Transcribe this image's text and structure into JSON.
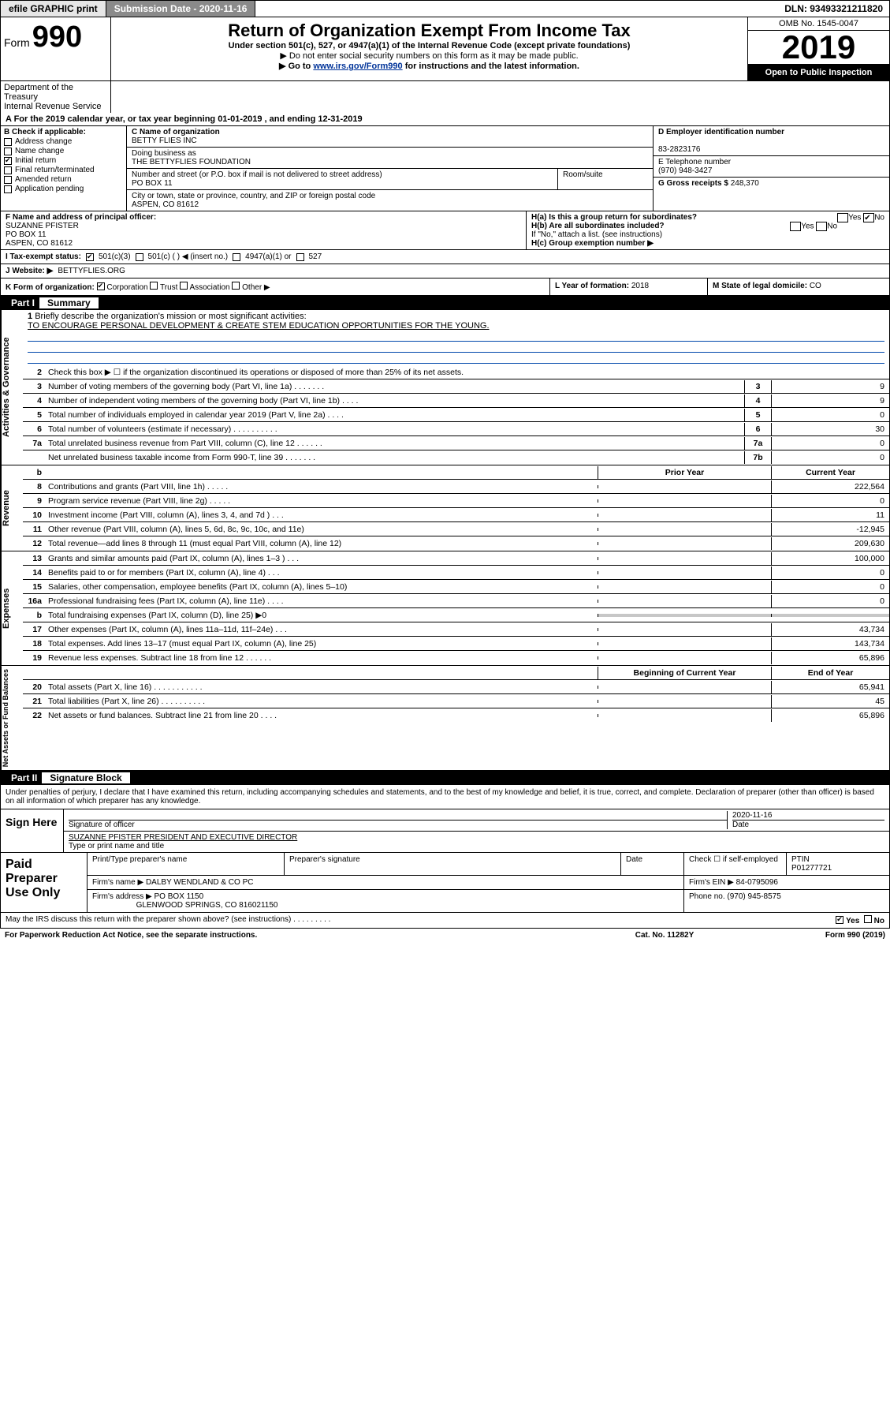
{
  "topbar": {
    "btn1": "efile GRAPHIC print",
    "btn2": "Submission Date - 2020-11-16",
    "dln": "DLN: 93493321211820"
  },
  "header": {
    "form_prefix": "Form",
    "form_no": "990",
    "title": "Return of Organization Exempt From Income Tax",
    "sub": "Under section 501(c), 527, or 4947(a)(1) of the Internal Revenue Code (except private foundations)",
    "sub2": "▶ Do not enter social security numbers on this form as it may be made public.",
    "sub3_pre": "▶ Go to ",
    "sub3_link": "www.irs.gov/Form990",
    "sub3_post": " for instructions and the latest information.",
    "omb": "OMB No. 1545-0047",
    "year": "2019",
    "open_public": "Open to Public Inspection",
    "dept": "Department of the Treasury",
    "irs": "Internal Revenue Service"
  },
  "line_a": "A For the 2019 calendar year, or tax year beginning 01-01-2019    , and ending 12-31-2019",
  "section_b": {
    "title": "B Check if applicable:",
    "opts": [
      {
        "label": "Address change",
        "checked": false
      },
      {
        "label": "Name change",
        "checked": false
      },
      {
        "label": "Initial return",
        "checked": true
      },
      {
        "label": "Final return/terminated",
        "checked": false
      },
      {
        "label": "Amended return",
        "checked": false
      },
      {
        "label": "Application pending",
        "checked": false
      }
    ]
  },
  "section_c": {
    "name_label": "C Name of organization",
    "name": "BETTY FLIES INC",
    "dba_label": "Doing business as",
    "dba": "THE BETTYFLIES FOUNDATION",
    "addr_label": "Number and street (or P.O. box if mail is not delivered to street address)",
    "room_label": "Room/suite",
    "addr": "PO BOX 11",
    "city_label": "City or town, state or province, country, and ZIP or foreign postal code",
    "city": "ASPEN, CO  81612"
  },
  "section_d": {
    "label": "D Employer identification number",
    "value": "83-2823176"
  },
  "section_e": {
    "label": "E Telephone number",
    "value": "(970) 948-3427"
  },
  "section_g": {
    "label": "G Gross receipts $",
    "value": "248,370"
  },
  "section_f": {
    "label": "F  Name and address of principal officer:",
    "name": "SUZANNE PFISTER",
    "addr1": "PO BOX 11",
    "addr2": "ASPEN, CO  81612"
  },
  "section_h": {
    "ha": "H(a)  Is this a group return for subordinates?",
    "hb": "H(b)  Are all subordinates included?",
    "hb_note": "If \"No,\" attach a list. (see instructions)",
    "hc": "H(c)  Group exemption number ▶",
    "yes": "Yes",
    "no": "No"
  },
  "row_i": {
    "label": "I  Tax-exempt status:",
    "c501c3": "501(c)(3)",
    "c501c": "501(c) (  ) ◀ (insert no.)",
    "c4947": "4947(a)(1) or",
    "c527": "527"
  },
  "row_j": {
    "label": "J  Website: ▶",
    "value": "BETTYFLIES.ORG"
  },
  "row_k": {
    "label": "K Form of organization:",
    "corp": "Corporation",
    "trust": "Trust",
    "assoc": "Association",
    "other": "Other ▶",
    "l_label": "L Year of formation:",
    "l_val": "2018",
    "m_label": "M State of legal domicile:",
    "m_val": "CO"
  },
  "part1": {
    "box": "Part I",
    "title": "Summary"
  },
  "side_labels": {
    "gov": "Activities & Governance",
    "rev": "Revenue",
    "exp": "Expenses",
    "net": "Net Assets or Fund Balances"
  },
  "q1": {
    "num": "1",
    "desc": "Briefly describe the organization's mission or most significant activities:",
    "mission": "TO ENCOURAGE PERSONAL DEVELOPMENT & CREATE STEM EDUCATION OPPORTUNITIES FOR THE YOUNG."
  },
  "q2": {
    "num": "2",
    "desc": "Check this box ▶ ☐  if the organization discontinued its operations or disposed of more than 25% of its net assets."
  },
  "numeric_rows_a": [
    {
      "num": "3",
      "desc": "Number of voting members of the governing body (Part VI, line 1a)   .   .   .   .   .   .   .",
      "n": "3",
      "v": "9"
    },
    {
      "num": "4",
      "desc": "Number of independent voting members of the governing body (Part VI, line 1b)  .   .   .   .",
      "n": "4",
      "v": "9"
    },
    {
      "num": "5",
      "desc": "Total number of individuals employed in calendar year 2019 (Part V, line 2a)   .   .   .   .",
      "n": "5",
      "v": "0"
    },
    {
      "num": "6",
      "desc": "Total number of volunteers (estimate if necessary)   .   .   .   .   .   .   .   .   .   .",
      "n": "6",
      "v": "30"
    },
    {
      "num": "7a",
      "desc": "Total unrelated business revenue from Part VIII, column (C), line 12   .   .   .   .   .   .",
      "n": "7a",
      "v": "0"
    },
    {
      "num": "",
      "desc": "Net unrelated business taxable income from Form 990-T, line 39   .   .   .   .   .   .   .",
      "n": "7b",
      "v": "0"
    }
  ],
  "hdr_b": {
    "num": "b",
    "prior": "Prior Year",
    "curr": "Current Year"
  },
  "rev_rows": [
    {
      "num": "8",
      "desc": "Contributions and grants (Part VIII, line 1h)   .   .   .   .   .",
      "p": "",
      "c": "222,564"
    },
    {
      "num": "9",
      "desc": "Program service revenue (Part VIII, line 2g)   .   .   .   .   .",
      "p": "",
      "c": "0"
    },
    {
      "num": "10",
      "desc": "Investment income (Part VIII, column (A), lines 3, 4, and 7d )   .   .   .",
      "p": "",
      "c": "11"
    },
    {
      "num": "11",
      "desc": "Other revenue (Part VIII, column (A), lines 5, 6d, 8c, 9c, 10c, and 11e)",
      "p": "",
      "c": "-12,945"
    },
    {
      "num": "12",
      "desc": "Total revenue—add lines 8 through 11 (must equal Part VIII, column (A), line 12)",
      "p": "",
      "c": "209,630"
    }
  ],
  "exp_rows": [
    {
      "num": "13",
      "desc": "Grants and similar amounts paid (Part IX, column (A), lines 1–3 )   .   .   .",
      "p": "",
      "c": "100,000"
    },
    {
      "num": "14",
      "desc": "Benefits paid to or for members (Part IX, column (A), line 4)   .   .   .",
      "p": "",
      "c": "0"
    },
    {
      "num": "15",
      "desc": "Salaries, other compensation, employee benefits (Part IX, column (A), lines 5–10)",
      "p": "",
      "c": "0"
    },
    {
      "num": "16a",
      "desc": "Professional fundraising fees (Part IX, column (A), line 11e)   .   .   .   .",
      "p": "",
      "c": "0"
    },
    {
      "num": "b",
      "desc": "Total fundraising expenses (Part IX, column (D), line 25) ▶0",
      "grey": true
    },
    {
      "num": "17",
      "desc": "Other expenses (Part IX, column (A), lines 11a–11d, 11f–24e)   .   .   .",
      "p": "",
      "c": "43,734"
    },
    {
      "num": "18",
      "desc": "Total expenses. Add lines 13–17 (must equal Part IX, column (A), line 25)",
      "p": "",
      "c": "143,734"
    },
    {
      "num": "19",
      "desc": "Revenue less expenses. Subtract line 18 from line 12   .   .   .   .   .   .",
      "p": "",
      "c": "65,896"
    }
  ],
  "hdr_c": {
    "prior": "Beginning of Current Year",
    "curr": "End of Year"
  },
  "net_rows": [
    {
      "num": "20",
      "desc": "Total assets (Part X, line 16)   .   .   .   .   .   .   .   .   .   .   .",
      "p": "",
      "c": "65,941"
    },
    {
      "num": "21",
      "desc": "Total liabilities (Part X, line 26)   .   .   .   .   .   .   .   .   .   .",
      "p": "",
      "c": "45"
    },
    {
      "num": "22",
      "desc": "Net assets or fund balances. Subtract line 21 from line 20   .   .   .   .",
      "p": "",
      "c": "65,896"
    }
  ],
  "part2": {
    "box": "Part II",
    "title": "Signature Block"
  },
  "penalty": "Under penalties of perjury, I declare that I have examined this return, including accompanying schedules and statements, and to the best of my knowledge and belief, it is true, correct, and complete. Declaration of preparer (other than officer) is based on all information of which preparer has any knowledge.",
  "sign": {
    "label": "Sign Here",
    "sig_officer": "Signature of officer",
    "date": "2020-11-16",
    "date_label": "Date",
    "name": "SUZANNE PFISTER  PRESIDENT AND EXECUTIVE DIRECTOR",
    "name_label": "Type or print name and title"
  },
  "prep": {
    "label": "Paid Preparer Use Only",
    "h1": "Print/Type preparer's name",
    "h2": "Preparer's signature",
    "h3": "Date",
    "h4": "Check ☐ if self-employed",
    "h5": "PTIN",
    "ptin": "P01277721",
    "firm_label": "Firm's name    ▶",
    "firm": "DALBY WENDLAND & CO PC",
    "ein_label": "Firm's EIN ▶",
    "ein": "84-0795096",
    "addr_label": "Firm's address ▶",
    "addr1": "PO BOX 1150",
    "addr2": "GLENWOOD SPRINGS, CO  816021150",
    "phone_label": "Phone no.",
    "phone": "(970) 945-8575"
  },
  "discuss": "May the IRS discuss this return with the preparer shown above? (see instructions)   .   .   .   .   .   .   .   .   .",
  "discuss_yes": "Yes",
  "discuss_no": "No",
  "footer": {
    "pra": "For Paperwork Reduction Act Notice, see the separate instructions.",
    "cat": "Cat. No. 11282Y",
    "form": "Form 990 (2019)"
  },
  "colors": {
    "black": "#000000",
    "grey": "#c7c7c7",
    "link": "#003399",
    "darkbtn": "#8a8a8a"
  }
}
